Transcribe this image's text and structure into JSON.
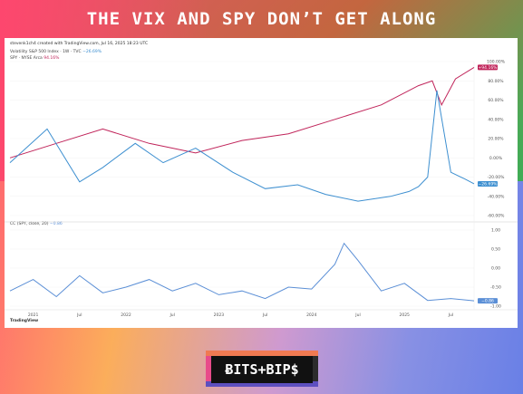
{
  "headline": "THE VIX AND SPY DON’T GET ALONG",
  "chart_meta": "stevenk1ch4 created with TradingView.com, Jul 16, 2025 18:23 UTC",
  "chart_data": [
    {
      "type": "line",
      "x_ticks": [
        "2021",
        "Jul",
        "2022",
        "Jul",
        "2023",
        "Jul",
        "2024",
        "Jul",
        "2025",
        "Jul"
      ],
      "y_ticks": [
        "100.00%",
        "80.00%",
        "60.00%",
        "40.00%",
        "20.00%",
        "0.00%",
        "-20.00%",
        "-40.00%",
        "-60.00%"
      ],
      "y_scale": "percent change",
      "ylim": [
        -60,
        100
      ],
      "series": [
        {
          "name": "Volatility S&P 500 Index · 1W · TVC",
          "label_value": "−26.69%",
          "last_value_tag": "−26.69%",
          "color": "#3d8fd0",
          "x": [
            0.0,
            0.08,
            0.15,
            0.2,
            0.27,
            0.33,
            0.4,
            0.48,
            0.55,
            0.62,
            0.68,
            0.75,
            0.82,
            0.86,
            0.88,
            0.9,
            0.92,
            0.95,
            0.98,
            1.0
          ],
          "values": [
            -5,
            30,
            -25,
            -10,
            15,
            -5,
            10,
            -15,
            -32,
            -28,
            -38,
            -45,
            -40,
            -35,
            -30,
            -20,
            70,
            -15,
            -22,
            -27
          ]
        },
        {
          "name": "SPY · NYSE Arca",
          "label_value": "94.16%",
          "last_value_tag": "+94.16%",
          "color": "#c0245a",
          "x": [
            0.0,
            0.1,
            0.2,
            0.3,
            0.4,
            0.5,
            0.6,
            0.7,
            0.8,
            0.88,
            0.91,
            0.93,
            0.96,
            1.0
          ],
          "values": [
            0,
            15,
            30,
            15,
            5,
            18,
            25,
            40,
            55,
            75,
            80,
            55,
            82,
            94
          ]
        }
      ]
    },
    {
      "type": "line",
      "title": "CC (SPY, close, 20)",
      "label_value": "−0.86",
      "last_value_tag": "−0.86",
      "y_ticks": [
        "1.00",
        "0.50",
        "0.00",
        "-0.50",
        "-1.00"
      ],
      "ylim": [
        -1,
        1
      ],
      "series": [
        {
          "name": "CC (SPY, close, 20)",
          "color": "#5b8fd6",
          "x": [
            0.0,
            0.05,
            0.1,
            0.15,
            0.2,
            0.25,
            0.3,
            0.35,
            0.4,
            0.45,
            0.5,
            0.55,
            0.6,
            0.65,
            0.7,
            0.72,
            0.75,
            0.8,
            0.85,
            0.9,
            0.95,
            1.0
          ],
          "values": [
            -0.6,
            -0.3,
            -0.75,
            -0.2,
            -0.65,
            -0.5,
            -0.3,
            -0.6,
            -0.4,
            -0.7,
            -0.6,
            -0.8,
            -0.5,
            -0.55,
            0.1,
            0.65,
            0.2,
            -0.6,
            -0.4,
            -0.85,
            -0.8,
            -0.86
          ]
        }
      ]
    }
  ],
  "x_axis_labels": [
    "2021",
    "Jul",
    "2022",
    "Jul",
    "2023",
    "Jul",
    "2024",
    "Jul",
    "2025",
    "Jul"
  ],
  "tradingview_label": "TradingView",
  "brand": "ɃITS+BIP$",
  "colors": {
    "vix": "#3d8fd0",
    "spy": "#c0245a",
    "cc": "#5b8fd6"
  }
}
